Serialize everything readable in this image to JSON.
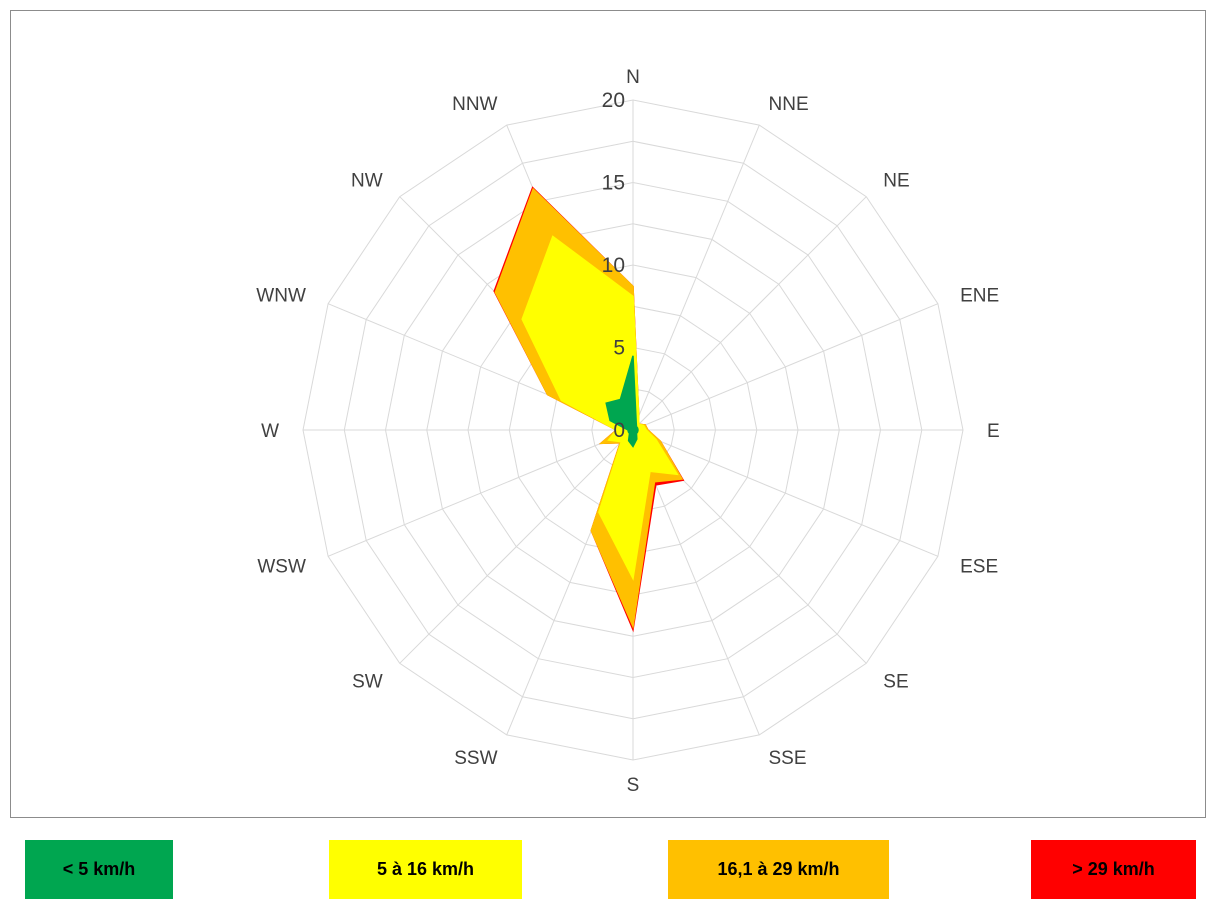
{
  "chart_data": {
    "type": "radar-stacked",
    "title": "",
    "directions": [
      "N",
      "NNE",
      "NE",
      "ENE",
      "E",
      "ESE",
      "SE",
      "SSE",
      "S",
      "SSW",
      "SW",
      "WSW",
      "W",
      "WNW",
      "NW",
      "NNW"
    ],
    "radial_ticks": [
      "0",
      "5",
      "10",
      "15",
      "20"
    ],
    "rmax": 20,
    "series": [
      {
        "name": "< 5 km/h",
        "color": "#00a650",
        "values": [
          4.5,
          0.5,
          0.3,
          0.3,
          0.3,
          0.3,
          0.3,
          0.6,
          1.0,
          0.7,
          0.3,
          0.3,
          0.3,
          1.5,
          2.3,
          2.0
        ]
      },
      {
        "name": "5 à 16 km/h",
        "color": "#ffff00",
        "values": [
          8.1,
          0.9,
          0.5,
          0.7,
          0.8,
          1.5,
          3.8,
          2.7,
          9.0,
          5.4,
          1.0,
          1.6,
          1.0,
          4.7,
          9.5,
          12.7
        ]
      },
      {
        "name": "16,1 à 29 km/h",
        "color": "#ffc000",
        "values": [
          8.7,
          0.9,
          0.5,
          0.8,
          0.9,
          1.8,
          4.2,
          3.4,
          11.9,
          6.6,
          1.1,
          2.1,
          1.0,
          5.6,
          11.8,
          15.8
        ]
      },
      {
        "name": "> 29 km/h",
        "color": "#ff0000",
        "values": [
          8.7,
          0.9,
          0.5,
          0.8,
          0.9,
          1.8,
          4.3,
          3.6,
          12.1,
          6.6,
          1.1,
          2.1,
          1.0,
          5.6,
          11.9,
          15.9
        ]
      }
    ],
    "legend_position": "bottom",
    "grid": true
  }
}
